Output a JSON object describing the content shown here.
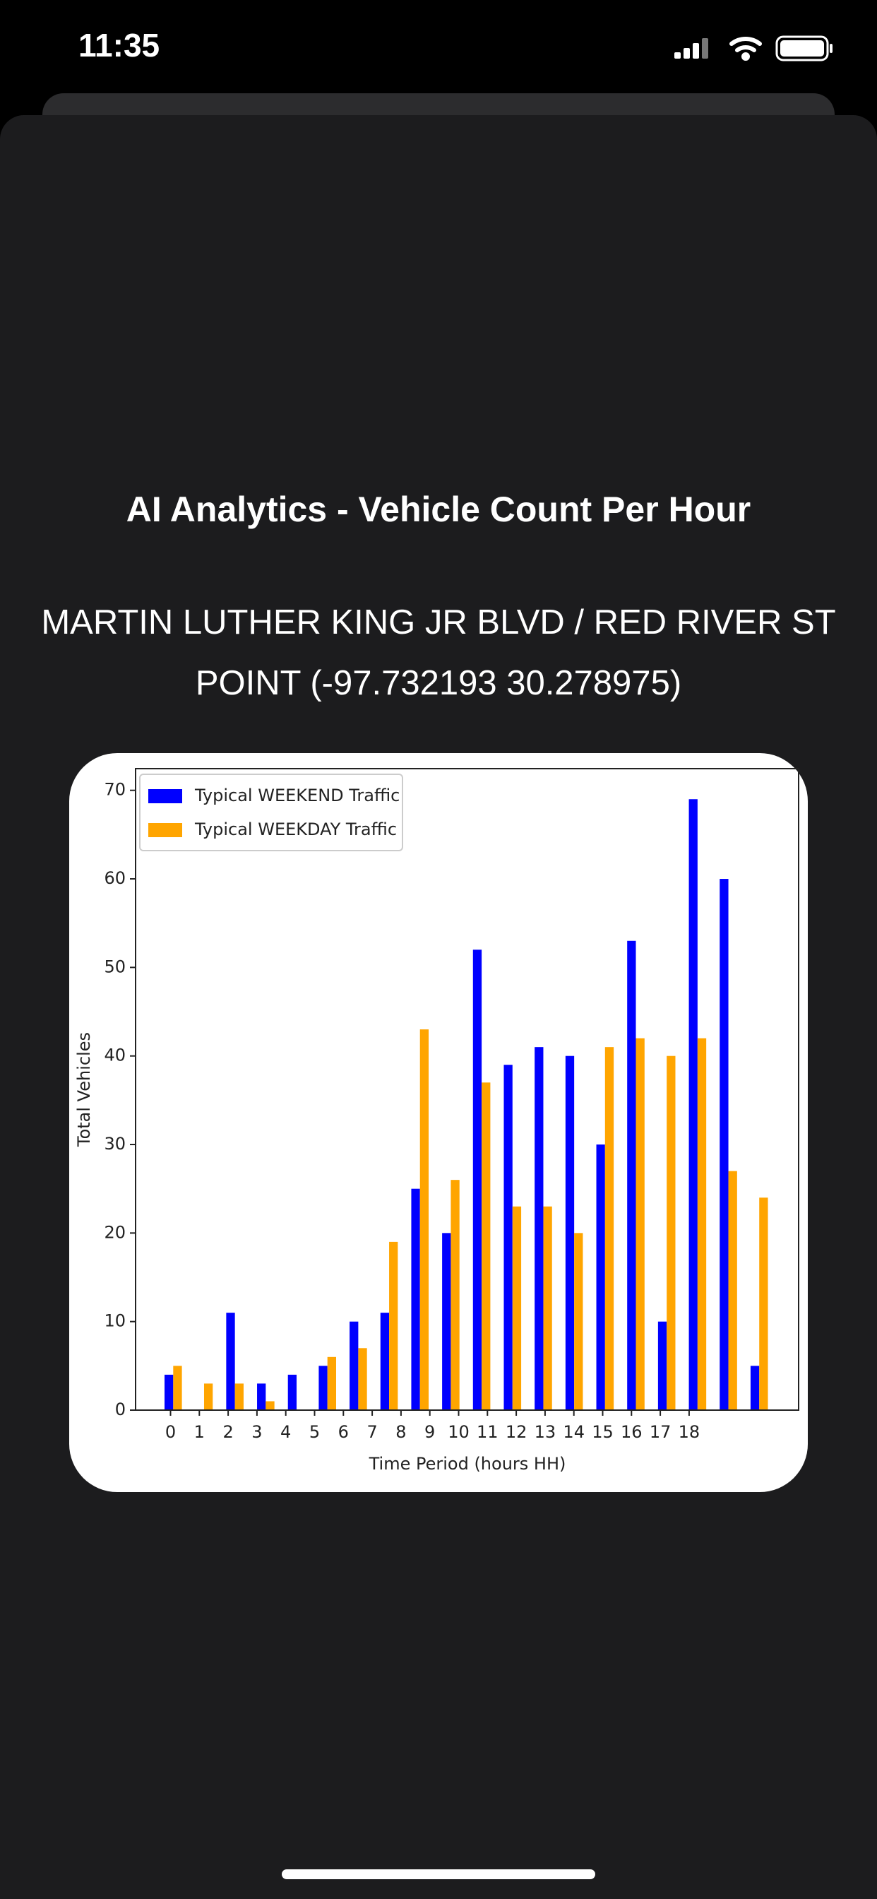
{
  "status_bar": {
    "time": "11:35"
  },
  "header": {
    "title": "AI Analytics - Vehicle Count Per Hour",
    "location_lines": [
      "MARTIN LUTHER KING JR BLVD / RED RIVER ST",
      "POINT (-97.732193 30.278975)"
    ]
  },
  "chart_data": {
    "type": "bar",
    "xlabel": "Time Period (hours HH)",
    "ylabel": "Total Vehicles",
    "categories": [
      "0",
      "1",
      "2",
      "3",
      "4",
      "5",
      "6",
      "7",
      "8",
      "9",
      "10",
      "11",
      "12",
      "13",
      "14",
      "15",
      "16",
      "17",
      "18",
      null
    ],
    "series": [
      {
        "name": "Typical WEEKEND Traffic",
        "color": "#0000ff",
        "values": [
          4,
          0,
          11,
          3,
          4,
          5,
          10,
          11,
          25,
          20,
          52,
          39,
          41,
          40,
          30,
          53,
          10,
          69,
          60,
          5
        ]
      },
      {
        "name": "Typical WEEKDAY Traffic",
        "color": "#ffa500",
        "values": [
          5,
          3,
          3,
          1,
          0,
          6,
          7,
          19,
          43,
          26,
          37,
          23,
          23,
          20,
          41,
          42,
          40,
          42,
          27,
          24
        ]
      }
    ],
    "ylim": [
      0,
      72.45
    ],
    "yticks": [
      0,
      10,
      20,
      30,
      40,
      50,
      60,
      70
    ],
    "grid": false,
    "legend": "upper left"
  }
}
